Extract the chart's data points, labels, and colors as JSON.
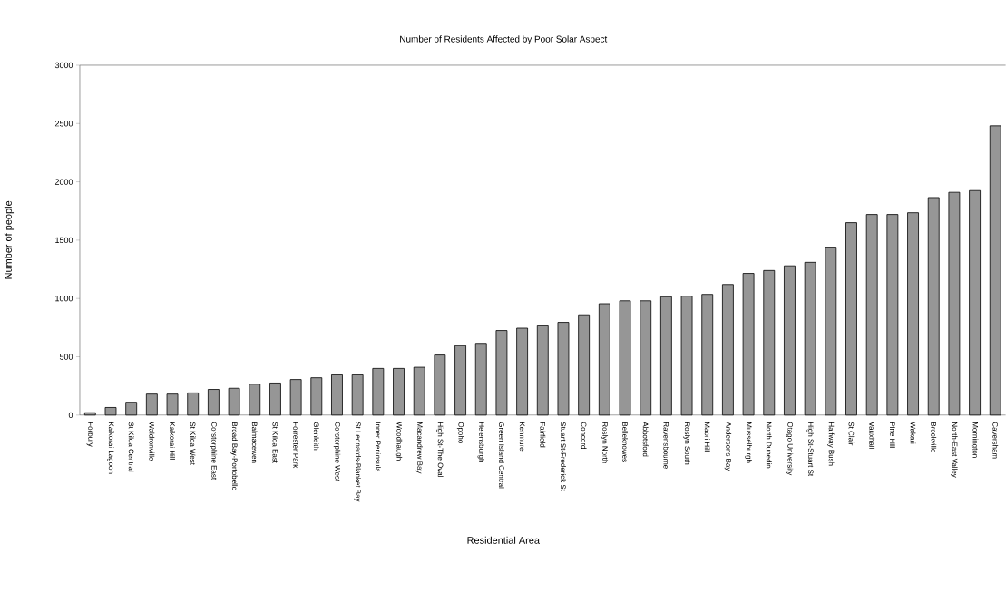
{
  "chart_data": {
    "type": "bar",
    "title": "Number of Residents Affected by Poor Solar Aspect",
    "xlabel": "Residential Area",
    "ylabel": "Number of people",
    "categories": [
      "Forbury",
      "Kaikorai Lagoon",
      "St Kilda Central",
      "Waldronville",
      "Kaikorai Hill",
      "St Kilda West",
      "Corstorphine East",
      "Broad Bay-Portobello",
      "Balmacewen",
      "St Kilda East",
      "Forrester Park",
      "Glenleith",
      "Corstorphine West",
      "St Leonards-Blanket Bay",
      "Inner Peninsula",
      "Woodhaugh",
      "Macandrew Bay",
      "High St-The Oval",
      "Opoho",
      "Helensburgh",
      "Green Island Central",
      "Kenmure",
      "Fairfield",
      "Stuart St-Frederick St",
      "Concord",
      "Roslyn North",
      "Belleknowes",
      "Abbotsford",
      "Ravensbourne",
      "Roslyn South",
      "Maori Hill",
      "Andersons Bay",
      "Musselburgh",
      "North Dunedin",
      "Otago University",
      "High St-Stuart St",
      "Halfway Bush",
      "St Clair",
      "Vauxhall",
      "Pine Hill",
      "Wakari",
      "Brockville",
      "North-East Valley",
      "Mornington",
      "Caversham"
    ],
    "values": [
      20,
      65,
      110,
      180,
      180,
      190,
      220,
      230,
      265,
      275,
      305,
      320,
      345,
      345,
      400,
      400,
      410,
      515,
      595,
      615,
      725,
      745,
      765,
      795,
      860,
      955,
      980,
      980,
      1015,
      1020,
      1035,
      1120,
      1215,
      1240,
      1280,
      1310,
      1440,
      1650,
      1720,
      1720,
      1735,
      1865,
      1910,
      1925,
      2480
    ],
    "color": "#969696",
    "ylim": [
      0,
      3000
    ],
    "yticks": [
      0,
      500,
      1000,
      1500,
      2000,
      2500,
      3000
    ],
    "grid": false
  }
}
